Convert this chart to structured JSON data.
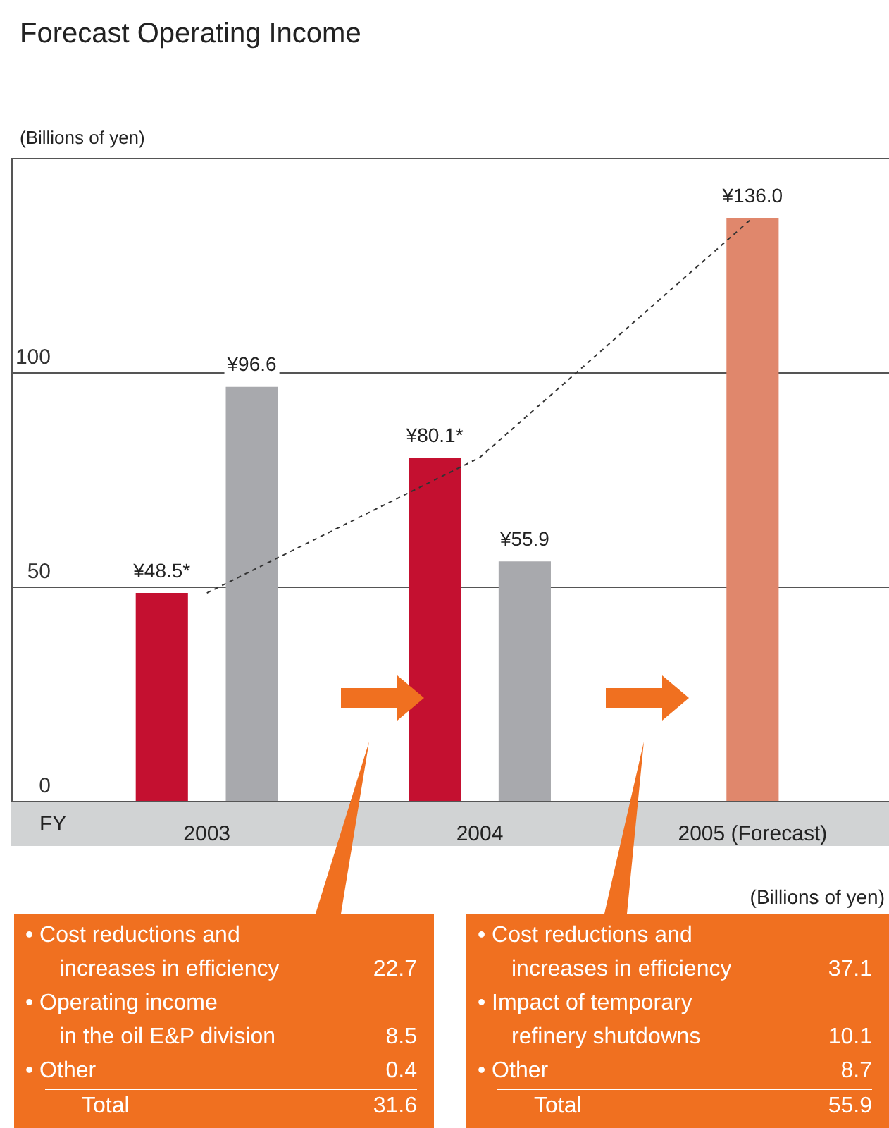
{
  "chart_data": {
    "type": "bar",
    "title": "Forecast Operating Income",
    "ylabel": "(Billions of yen)",
    "xlabel": "FY",
    "categories": [
      "2003",
      "2004",
      "2005 (Forecast)"
    ],
    "series": [
      {
        "color": "#c41030",
        "values": [
          48.5,
          80.1,
          null
        ],
        "value_labels": [
          "¥48.5*",
          "¥80.1*",
          null
        ]
      },
      {
        "color": "#a8a9ad",
        "values": [
          96.6,
          55.9,
          null
        ],
        "value_labels": [
          "¥96.6",
          "¥55.9",
          null
        ]
      },
      {
        "color": "#e0876c",
        "values": [
          null,
          null,
          136.0
        ],
        "value_labels": [
          null,
          null,
          "¥136.0"
        ]
      },
      {
        "type": "line",
        "color": "#333333",
        "values": [
          48.5,
          80.1,
          136.0
        ],
        "line_style": "dashed",
        "marker": "none"
      }
    ],
    "ylim": [
      0,
      150
    ],
    "yticks": [
      0,
      50,
      100
    ],
    "grid": "y",
    "legend": false,
    "annotations": [
      "(Billions of yen)",
      "• Cost reductions and\nincreases in efficiency\t22.7\n• Operating income\nin the oil E&P division\t8.5\n• Other\t0.4\nTotal\t31.6",
      "• Cost reductions and\nincreases in efficiency\t37.1\n• Impact of temporary\nrefinery shutdowns\t10.1\n• Other\t8.7\nTotal\t55.9"
    ]
  }
}
